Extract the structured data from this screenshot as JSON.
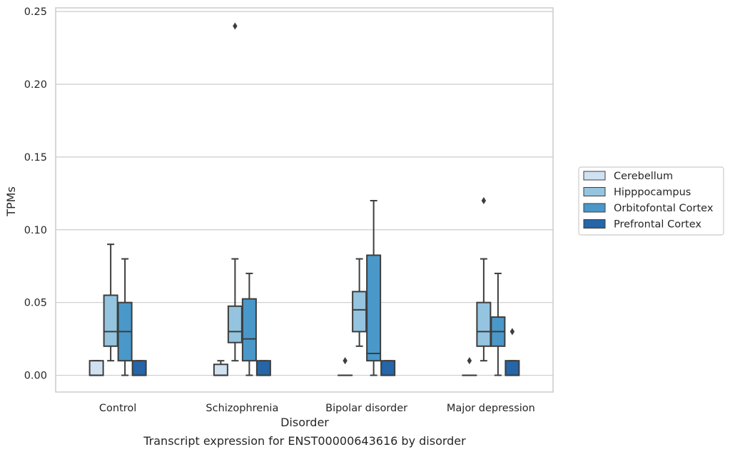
{
  "chart_data": {
    "type": "box",
    "title": "Transcript expression for ENST00000643616 by disorder",
    "xlabel": "Disorder",
    "ylabel": "TPMs",
    "ylim": [
      -0.0115,
      0.2525
    ],
    "yticks": [
      0.0,
      0.05,
      0.1,
      0.15,
      0.2,
      0.25
    ],
    "ytick_labels": [
      "0.00",
      "0.05",
      "0.10",
      "0.15",
      "0.20",
      "0.25"
    ],
    "grid": "horizontal",
    "legend_position": "right",
    "categories": [
      "Control",
      "Schizophrenia",
      "Bipolar disorder",
      "Major depression"
    ],
    "series": [
      {
        "name": "Cerebellum",
        "color": "#d0e1f2",
        "boxes": [
          {
            "whislo": 0.0,
            "q1": 0.0,
            "med": 0.0,
            "q3": 0.01,
            "whishi": 0.01,
            "fliers": []
          },
          {
            "whislo": 0.0,
            "q1": 0.0,
            "med": 0.0,
            "q3": 0.0075,
            "whishi": 0.01,
            "fliers": []
          },
          {
            "whislo": 0.0,
            "q1": 0.0,
            "med": 0.0,
            "q3": 0.0,
            "whishi": 0.0,
            "fliers": [
              0.01
            ]
          },
          {
            "whislo": 0.0,
            "q1": 0.0,
            "med": 0.0,
            "q3": 0.0,
            "whishi": 0.0,
            "fliers": [
              0.01
            ]
          }
        ]
      },
      {
        "name": "Hipppocampus",
        "color": "#94c4df",
        "boxes": [
          {
            "whislo": 0.01,
            "q1": 0.02,
            "med": 0.03,
            "q3": 0.055,
            "whishi": 0.09,
            "fliers": []
          },
          {
            "whislo": 0.01,
            "q1": 0.0225,
            "med": 0.03,
            "q3": 0.0475,
            "whishi": 0.08,
            "fliers": [
              0.24
            ]
          },
          {
            "whislo": 0.02,
            "q1": 0.03,
            "med": 0.045,
            "q3": 0.0575,
            "whishi": 0.08,
            "fliers": []
          },
          {
            "whislo": 0.01,
            "q1": 0.02,
            "med": 0.03,
            "q3": 0.05,
            "whishi": 0.08,
            "fliers": [
              0.12
            ]
          }
        ]
      },
      {
        "name": "Orbitofontal Cortex",
        "color": "#4a98c9",
        "boxes": [
          {
            "whislo": 0.0,
            "q1": 0.01,
            "med": 0.03,
            "q3": 0.05,
            "whishi": 0.08,
            "fliers": []
          },
          {
            "whislo": 0.0,
            "q1": 0.01,
            "med": 0.025,
            "q3": 0.0525,
            "whishi": 0.07,
            "fliers": []
          },
          {
            "whislo": 0.0,
            "q1": 0.01,
            "med": 0.015,
            "q3": 0.0825,
            "whishi": 0.12,
            "fliers": []
          },
          {
            "whislo": 0.0,
            "q1": 0.02,
            "med": 0.03,
            "q3": 0.04,
            "whishi": 0.07,
            "fliers": []
          }
        ]
      },
      {
        "name": "Prefrontal Cortex",
        "color": "#2565a8",
        "boxes": [
          {
            "whislo": 0.0,
            "q1": 0.0,
            "med": 0.0,
            "q3": 0.01,
            "whishi": 0.01,
            "fliers": []
          },
          {
            "whislo": 0.0,
            "q1": 0.0,
            "med": 0.0,
            "q3": 0.01,
            "whishi": 0.01,
            "fliers": []
          },
          {
            "whislo": 0.0,
            "q1": 0.0,
            "med": 0.0,
            "q3": 0.01,
            "whishi": 0.01,
            "fliers": []
          },
          {
            "whislo": 0.0,
            "q1": 0.0,
            "med": 0.0,
            "q3": 0.01,
            "whishi": 0.01,
            "fliers": [
              0.03
            ]
          }
        ]
      }
    ]
  }
}
